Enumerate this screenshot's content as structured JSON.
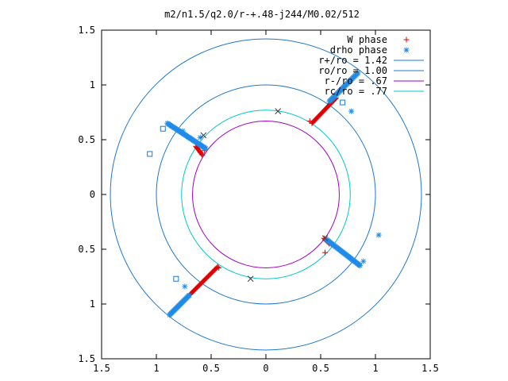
{
  "chart_data": {
    "type": "scatter",
    "title": "m2/n1.5/q2.0/r-+.48-j244/M0.02/512",
    "xlim": [
      -1.5,
      1.5
    ],
    "ylim": [
      -1.5,
      1.5
    ],
    "x_ticks": [
      -1.5,
      -1,
      -0.5,
      0,
      0.5,
      1,
      1.5
    ],
    "x_tick_labels": [
      "1.5",
      "1",
      "0.5",
      "0",
      "0.5",
      "1",
      "1.5"
    ],
    "y_ticks": [
      1.5,
      1,
      0.5,
      0,
      -0.5,
      -1,
      -1.5
    ],
    "y_tick_labels": [
      "1.5",
      "1",
      "0.5",
      "0",
      "0.5",
      "1",
      "1.5"
    ],
    "grid": false,
    "legend_position": "top-right",
    "circles": [
      {
        "name": "r+/ro = 1.42",
        "radius": 1.42,
        "color": "#1f78c8"
      },
      {
        "name": "ro/ro = 1.00",
        "radius": 1.0,
        "color": "#1f78c8"
      },
      {
        "name": "r-/ro =  .67",
        "radius": 0.67,
        "color": "#a000c0"
      },
      {
        "name": "rc/ro =  .77",
        "radius": 0.77,
        "color": "#00c8c8"
      }
    ],
    "series": [
      {
        "name": "W phase",
        "marker": "plus",
        "color": "#e00000",
        "segments": [
          {
            "from": [
              0.42,
              0.65
            ],
            "to": [
              0.64,
              0.88
            ]
          },
          {
            "from": [
              -0.64,
              0.44
            ],
            "to": [
              -0.58,
              0.36
            ]
          },
          {
            "from": [
              0.53,
              -0.4
            ],
            "to": [
              0.58,
              -0.45
            ]
          },
          {
            "from": [
              -0.44,
              -0.66
            ],
            "to": [
              -0.7,
              -0.92
            ]
          }
        ],
        "extra_points": [
          [
            0.4,
            0.67
          ],
          [
            -0.43,
            -0.67
          ],
          [
            0.54,
            -0.53
          ],
          [
            -0.56,
            0.4
          ]
        ]
      },
      {
        "name": "drho phase",
        "marker": "asterisk",
        "color": "#1f8ce8",
        "segments": [
          {
            "from": [
              0.58,
              0.85
            ],
            "to": [
              0.84,
              1.11
            ]
          },
          {
            "from": [
              -0.9,
              0.65
            ],
            "to": [
              -0.55,
              0.42
            ]
          },
          {
            "from": [
              0.55,
              -0.41
            ],
            "to": [
              0.86,
              -0.65
            ]
          },
          {
            "from": [
              -0.7,
              -0.92
            ],
            "to": [
              -0.88,
              -1.1
            ]
          }
        ],
        "extra_points": [
          [
            0.78,
            0.76
          ],
          [
            1.03,
            -0.37
          ],
          [
            0.89,
            -0.61
          ],
          [
            -0.74,
            -0.84
          ],
          [
            -0.6,
            0.52
          ],
          [
            -0.76,
            0.58
          ]
        ]
      }
    ],
    "other_marks": [
      {
        "marker": "cross",
        "color": "#404040",
        "points": [
          [
            0.11,
            0.76
          ],
          [
            -0.57,
            0.54
          ],
          [
            0.54,
            -0.4
          ],
          [
            -0.14,
            -0.77
          ]
        ]
      },
      {
        "marker": "square",
        "color": "#1f78c8",
        "points": [
          [
            0.7,
            0.84
          ],
          [
            -0.94,
            0.6
          ],
          [
            -1.06,
            0.37
          ],
          [
            -0.82,
            -0.77
          ]
        ]
      }
    ]
  }
}
